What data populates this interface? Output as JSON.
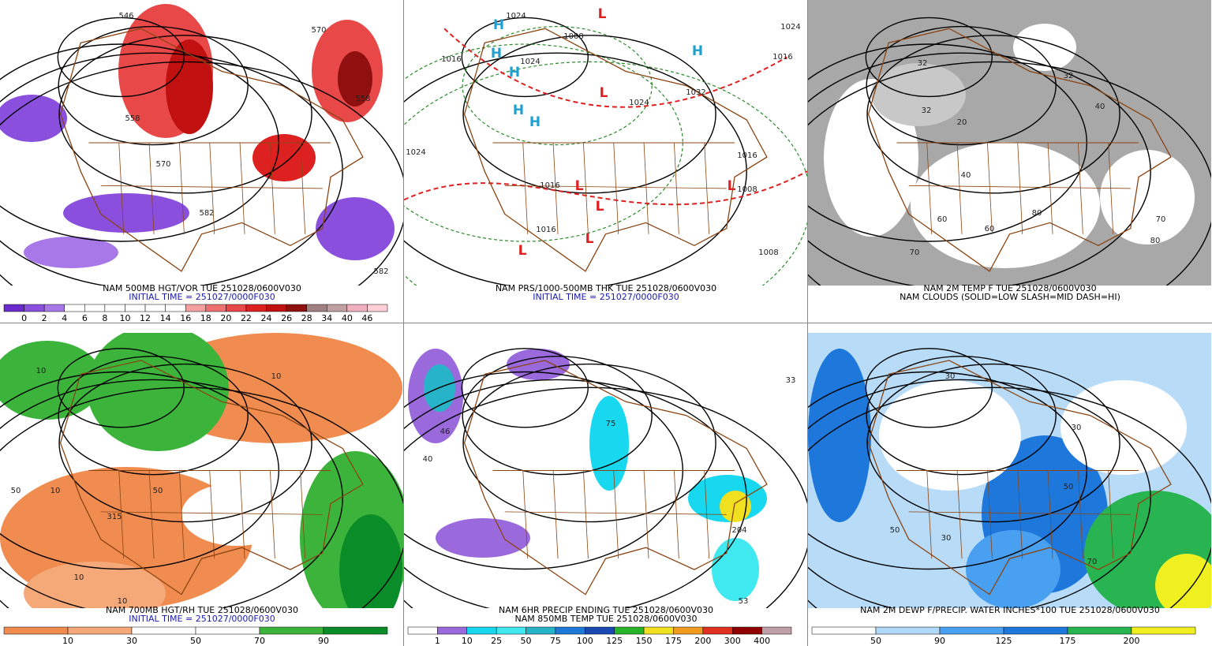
{
  "panels": [
    {
      "caption": [
        "NAM 500MB HGT/VOR TUE 251028/0600V030",
        "INITIAL TIME = 251027/0000F030"
      ],
      "caption_colors": [
        "#000000",
        "#1a1ab4"
      ],
      "labels": [
        "546",
        "570",
        "558",
        "570",
        "558",
        "582",
        "582"
      ],
      "colorbar": {
        "labels": [
          0,
          2,
          4,
          6,
          8,
          10,
          12,
          14,
          16,
          18,
          20,
          22,
          24,
          26,
          28,
          34,
          40,
          46
        ],
        "colors": [
          "#6a2ccc",
          "#8a50dd",
          "#a878e8",
          "#ffffff",
          "#ffffff",
          "#ffffff",
          "#ffffff",
          "#ffffff",
          "#ffffff",
          "#f5a0a0",
          "#ee7070",
          "#e84848",
          "#dd2020",
          "#c01010",
          "#901010",
          "#a08080",
          "#c0a0a0",
          "#f0b0c0",
          "#ffd0d8"
        ]
      }
    },
    {
      "caption": [
        "NAM PRS/1000-500MB THK TUE 251028/0600V030",
        "INITIAL TIME = 251027/0000F030"
      ],
      "caption_colors": [
        "#000000",
        "#1a1ab4"
      ],
      "labels": [
        "H",
        "H",
        "H",
        "H",
        "H",
        "H",
        "L",
        "L",
        "L",
        "L",
        "L",
        "L",
        "L",
        "1024",
        "1008",
        "1016",
        "1024",
        "1024",
        "1032",
        "1024",
        "1016",
        "1016",
        "1016",
        "1008",
        "1008",
        "1016",
        "1024"
      ]
    },
    {
      "caption": [
        "NAM 2M TEMP F TUE 251028/0600V030",
        "NAM CLOUDS (SOLID=LOW SLASH=MID DASH=HI)"
      ],
      "caption_colors": [
        "#000000",
        "#000000"
      ],
      "labels": [
        "32",
        "32",
        "40",
        "32",
        "40",
        "20",
        "60",
        "70",
        "80",
        "60",
        "80",
        "70"
      ]
    },
    {
      "caption": [
        "NAM 700MB HGT/RH TUE 251028/0600V030",
        "INITIAL TIME = 251027/0000F030"
      ],
      "caption_colors": [
        "#000000",
        "#1a1ab4"
      ],
      "labels": [
        "10",
        "10",
        "10",
        "315",
        "50",
        "50",
        "10",
        "10"
      ],
      "colorbar": {
        "labels": [
          10,
          30,
          50,
          70,
          90
        ],
        "colors": [
          "#f08c50",
          "#f5a878",
          "#ffffff",
          "#ffffff",
          "#3cb43c",
          "#0a8c28"
        ]
      }
    },
    {
      "caption": [
        "NAM 6HR PRECIP ENDING TUE 251028/0600V030",
        "NAM 850MB TEMP TUE 251028/0600V030"
      ],
      "caption_colors": [
        "#000000",
        "#000000"
      ],
      "labels": [
        "46",
        "75",
        "204",
        "53",
        "40",
        "33"
      ],
      "colorbar": {
        "labels": [
          1,
          10,
          25,
          50,
          75,
          100,
          125,
          150,
          175,
          200,
          300,
          400
        ],
        "colors": [
          "#ffffff",
          "#9a6adc",
          "#18d8f0",
          "#40e8f0",
          "#28b4c8",
          "#1e78d8",
          "#1848b0",
          "#28b428",
          "#f0e020",
          "#f09a20",
          "#e03020",
          "#900000",
          "#c0a0a8"
        ]
      }
    },
    {
      "caption": [
        "NAM 2M DEWP F/PRECIP. WATER INCHES*100 TUE 251028/0600V030"
      ],
      "caption_colors": [
        "#000000"
      ],
      "labels": [
        "30",
        "30",
        "50",
        "70",
        "50",
        "30"
      ],
      "colorbar": {
        "labels": [
          50,
          90,
          125,
          175,
          200
        ],
        "colors": [
          "#ffffff",
          "#b0d8f8",
          "#4aa0f0",
          "#1e78dc",
          "#28b450",
          "#f0f020"
        ]
      }
    }
  ]
}
